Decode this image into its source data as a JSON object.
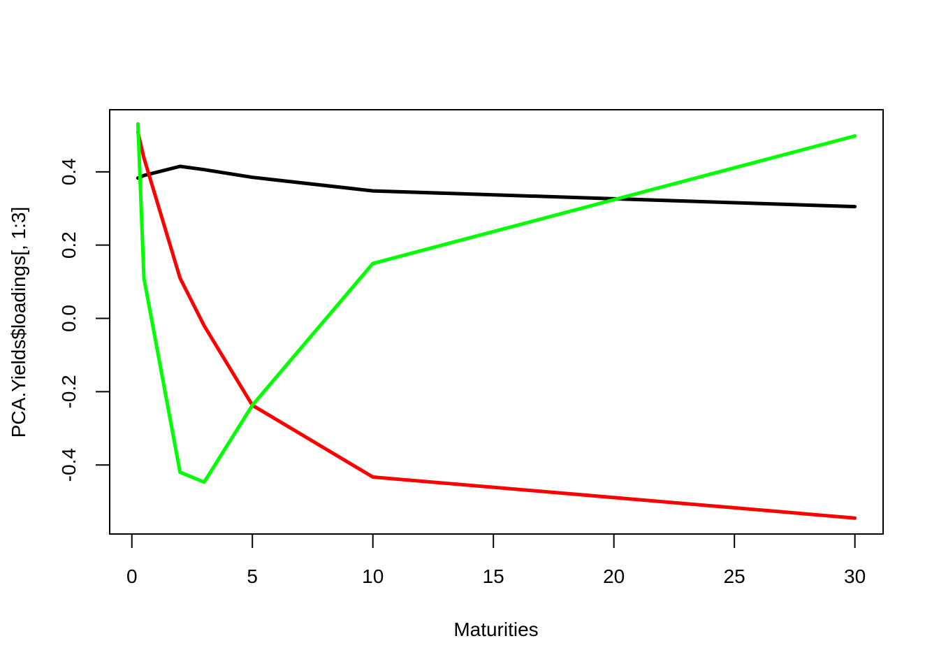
{
  "chart_data": {
    "type": "line",
    "title": "",
    "xlabel": "Maturities",
    "ylabel": "PCA.Yields$loadings[, 1:3]",
    "xlim": [
      -0.92,
      31.17
    ],
    "ylim": [
      -0.5885,
      0.5695
    ],
    "x_ticks": [
      0,
      5,
      10,
      15,
      20,
      25,
      30
    ],
    "y_ticks": [
      -0.4,
      -0.2,
      0.0,
      0.2,
      0.4
    ],
    "x_tick_labels": [
      "0",
      "5",
      "10",
      "15",
      "20",
      "25",
      "30"
    ],
    "y_tick_labels": [
      "-0.4",
      "-0.2",
      "0.0",
      "0.2",
      "0.4"
    ],
    "grid": false,
    "x": [
      0.25,
      0.5,
      2,
      3,
      5,
      10,
      30
    ],
    "series": [
      {
        "color": "#000000",
        "values": [
          0.383,
          0.39,
          0.415,
          0.406,
          0.385,
          0.348,
          0.305
        ]
      },
      {
        "color": "#ff0000",
        "values": [
          0.508,
          0.438,
          0.11,
          -0.02,
          -0.237,
          -0.433,
          -0.545
        ]
      },
      {
        "color": "#00ff00",
        "values": [
          0.531,
          0.11,
          -0.42,
          -0.447,
          -0.237,
          0.15,
          0.498
        ]
      }
    ]
  }
}
